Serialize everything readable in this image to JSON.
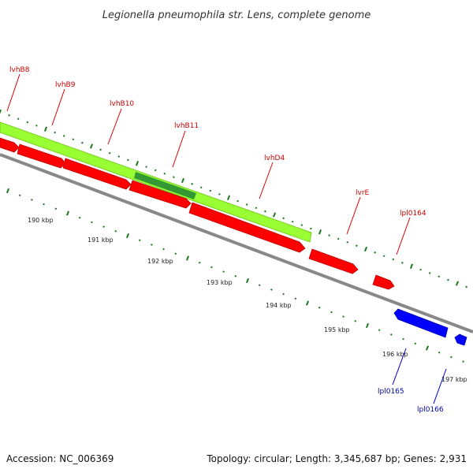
{
  "title": "Legionella pneumophila str. Lens, complete genome",
  "footer": {
    "accession": "Accession: NC_006369",
    "summary": "Topology: circular; Length: 3,345,687 bp; Genes: 2,931"
  },
  "colors": {
    "forward_gene": "#ff0000",
    "reverse_gene": "#0000ff",
    "operon": "#99ff33",
    "operon_overlap": "#339933",
    "backbone": "#888888",
    "ticks": "#1a7a1a",
    "label_forward": "#cc0000",
    "label_reverse": "#0000aa"
  },
  "scale": {
    "ticks": [
      {
        "label": "190 kbp"
      },
      {
        "label": "191 kbp"
      },
      {
        "label": "192 kbp"
      },
      {
        "label": "193 kbp"
      },
      {
        "label": "194 kbp"
      },
      {
        "label": "195 kbp"
      },
      {
        "label": "196 kbp"
      },
      {
        "label": "197 kbp"
      }
    ]
  },
  "genes": {
    "forward_labels": [
      "lvhB8",
      "lvhB9",
      "lvhB10",
      "lvhB11",
      "lvhD4",
      "lvrE",
      "lpl0164"
    ],
    "reverse_labels": [
      "lpl0165",
      "lpl0166"
    ]
  }
}
